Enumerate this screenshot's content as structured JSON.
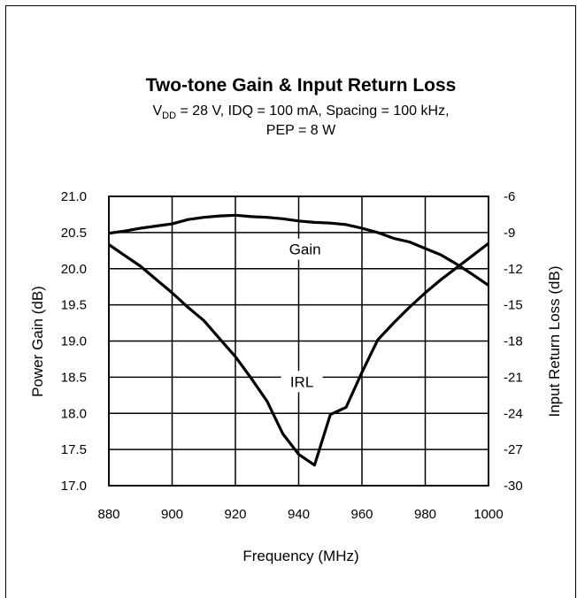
{
  "chart_data": {
    "type": "line",
    "title": "Two-tone Gain & Input Return Loss",
    "subtitle_line1": {
      "prefix": "V",
      "subscript": "DD",
      "rest": " = 28 V, IDQ = 100  mA, Spacing = 100 kHz,"
    },
    "subtitle_line2": "PEP = 8 W",
    "xlabel": "Frequency (MHz)",
    "ylabel_left": "Power Gain (dB)",
    "ylabel_right": "Input Return Loss (dB)",
    "xlim": [
      880,
      1000
    ],
    "ylim_left": [
      17.0,
      21.0
    ],
    "ylim_right": [
      -30,
      -6
    ],
    "x_ticks": [
      "880",
      "900",
      "920",
      "940",
      "960",
      "980",
      "1000"
    ],
    "y_left_ticks": [
      "17.0",
      "17.5",
      "18.0",
      "18.5",
      "19.0",
      "19.5",
      "20.0",
      "20.5",
      "21.0"
    ],
    "y_right_ticks": [
      "-30",
      "-27",
      "-24",
      "-21",
      "-18",
      "-15",
      "-12",
      "-9",
      "-6"
    ],
    "grid": true,
    "series": [
      {
        "name": "Gain",
        "axis": "left",
        "x": [
          880,
          885,
          890,
          895,
          900,
          905,
          910,
          915,
          920,
          925,
          930,
          935,
          940,
          945,
          950,
          955,
          960,
          965,
          970,
          975,
          980,
          985,
          990,
          995,
          1000
        ],
        "values": [
          20.49,
          20.52,
          20.56,
          20.59,
          20.62,
          20.68,
          20.71,
          20.73,
          20.74,
          20.72,
          20.71,
          20.69,
          20.66,
          20.64,
          20.63,
          20.61,
          20.56,
          20.5,
          20.42,
          20.37,
          20.28,
          20.19,
          20.06,
          19.92,
          19.77
        ]
      },
      {
        "name": "IRL",
        "axis": "right",
        "x": [
          880,
          885,
          890,
          895,
          900,
          905,
          910,
          915,
          920,
          925,
          930,
          935,
          940,
          945,
          950,
          955,
          960,
          965,
          970,
          975,
          980,
          985,
          990,
          995,
          1000
        ],
        "values": [
          -10.0,
          -10.9,
          -11.8,
          -12.9,
          -14.0,
          -15.2,
          -16.3,
          -17.8,
          -19.3,
          -21.1,
          -23.0,
          -25.7,
          -27.4,
          -28.3,
          -24.1,
          -23.5,
          -20.6,
          -17.9,
          -16.5,
          -15.2,
          -14.0,
          -12.9,
          -11.9,
          -10.9,
          -9.9
        ]
      }
    ],
    "annotations": [
      {
        "text": "Gain",
        "x": 942,
        "y_left": 20.27
      },
      {
        "text": "IRL",
        "x": 941,
        "y_left": 18.44
      }
    ]
  }
}
